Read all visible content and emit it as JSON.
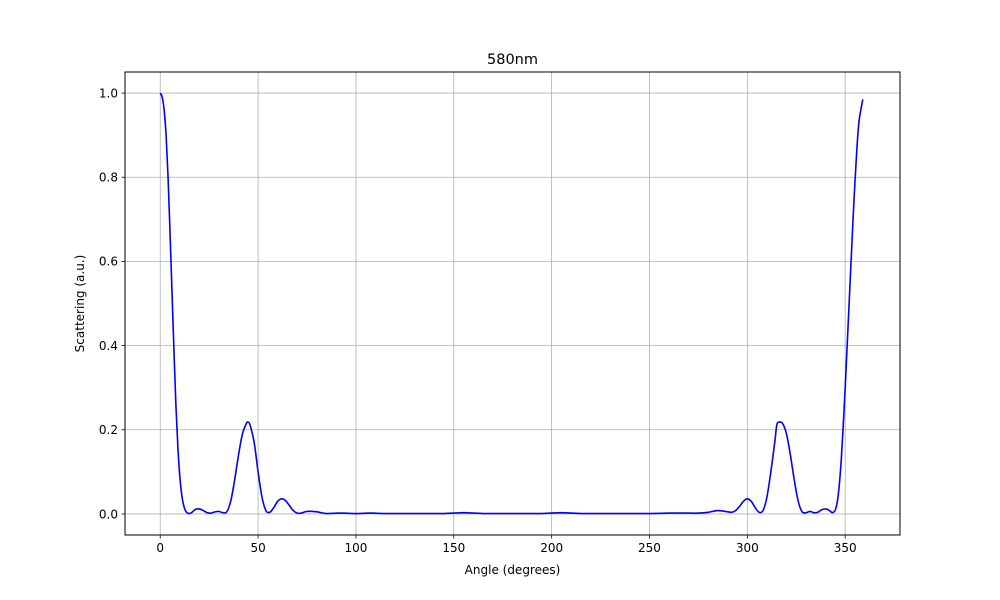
{
  "chart_data": {
    "type": "line",
    "title": "580nm",
    "xlabel": "Angle (degrees)",
    "ylabel": "Scattering (a.u.)",
    "xlim": [
      -18,
      378
    ],
    "ylim": [
      -0.05,
      1.05
    ],
    "xticks": [
      0,
      50,
      100,
      150,
      200,
      250,
      300,
      350
    ],
    "yticks": [
      0.0,
      0.2,
      0.4,
      0.6,
      0.8,
      1.0
    ],
    "xtick_labels": [
      "0",
      "50",
      "100",
      "150",
      "200",
      "250",
      "300",
      "350"
    ],
    "ytick_labels": [
      "0.0",
      "0.2",
      "0.4",
      "0.6",
      "0.8",
      "1.0"
    ],
    "grid": true,
    "series": [
      {
        "color": "#0000ff",
        "x": [
          0,
          1,
          2,
          3,
          4,
          5,
          6,
          7,
          8,
          9,
          10,
          11,
          12,
          13,
          14,
          15,
          16,
          17,
          18,
          20,
          22,
          24,
          26,
          28,
          30,
          32,
          34,
          36,
          38,
          40,
          42,
          44,
          45,
          46,
          48,
          50,
          52,
          54,
          56,
          58,
          60,
          62,
          64,
          66,
          68,
          70,
          72,
          75,
          80,
          85,
          92,
          100,
          108,
          115,
          130,
          145,
          155,
          165,
          180,
          195,
          205,
          215,
          230,
          250,
          260,
          270,
          275,
          280,
          285,
          290,
          292,
          294,
          296,
          298,
          300,
          302,
          304,
          306,
          308,
          310,
          312,
          314,
          315,
          316,
          318,
          320,
          322,
          324,
          326,
          328,
          330,
          332,
          334,
          336,
          338,
          340,
          342,
          343,
          344,
          345,
          346,
          347,
          348,
          349,
          350,
          351,
          352,
          353,
          354,
          355,
          356,
          357,
          358,
          359
        ],
        "y": [
          1.0,
          0.99,
          0.96,
          0.9,
          0.8,
          0.67,
          0.53,
          0.39,
          0.26,
          0.16,
          0.09,
          0.045,
          0.02,
          0.007,
          0.002,
          0.001,
          0.003,
          0.007,
          0.011,
          0.012,
          0.008,
          0.003,
          0.002,
          0.005,
          0.006,
          0.003,
          0.005,
          0.03,
          0.08,
          0.14,
          0.19,
          0.215,
          0.218,
          0.21,
          0.17,
          0.1,
          0.04,
          0.008,
          0.004,
          0.015,
          0.03,
          0.036,
          0.032,
          0.02,
          0.008,
          0.002,
          0.002,
          0.006,
          0.005,
          0.001,
          0.002,
          0.001,
          0.002,
          0.001,
          0.001,
          0.001,
          0.003,
          0.001,
          0.001,
          0.001,
          0.003,
          0.001,
          0.001,
          0.001,
          0.002,
          0.002,
          0.002,
          0.004,
          0.008,
          0.005,
          0.004,
          0.008,
          0.018,
          0.03,
          0.036,
          0.03,
          0.015,
          0.004,
          0.008,
          0.04,
          0.1,
          0.17,
          0.21,
          0.218,
          0.215,
          0.19,
          0.14,
          0.08,
          0.03,
          0.005,
          0.003,
          0.006,
          0.003,
          0.004,
          0.01,
          0.012,
          0.008,
          0.004,
          0.004,
          0.01,
          0.03,
          0.07,
          0.13,
          0.21,
          0.3,
          0.4,
          0.5,
          0.6,
          0.7,
          0.79,
          0.87,
          0.93,
          0.96,
          0.985
        ]
      }
    ]
  }
}
